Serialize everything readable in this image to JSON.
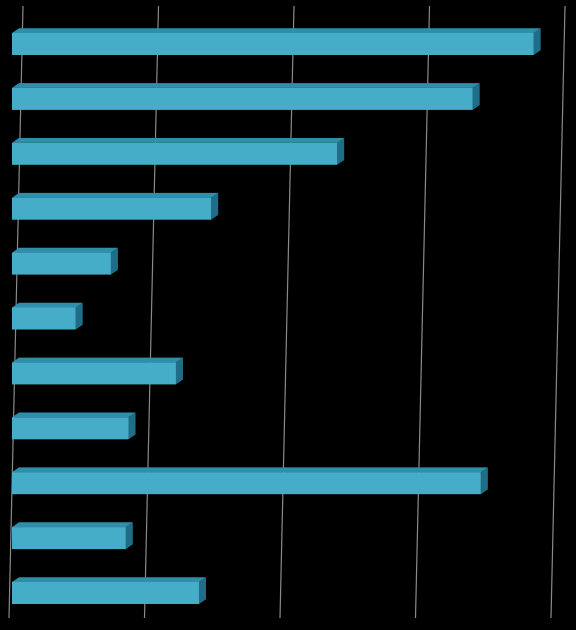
{
  "chart_data": {
    "type": "bar",
    "orientation": "horizontal",
    "style": "3d",
    "title": "",
    "xlabel": "",
    "ylabel": "",
    "grid": true,
    "legend": "none",
    "categories": [
      "",
      "",
      "",
      "",
      "",
      "",
      "",
      "",
      "",
      "",
      ""
    ],
    "series": [
      {
        "values": [
          3.85,
          3.4,
          2.4,
          1.47,
          0.73,
          0.47,
          1.21,
          0.86,
          3.46,
          0.84,
          1.38
        ]
      }
    ],
    "xlim": [
      0,
      4
    ],
    "colors": {
      "background": "#000000",
      "bar_front": "#46adc9",
      "bar_top": "#2f8fab",
      "bar_side": "#1f6e87",
      "grid": "#8a8a8a"
    }
  }
}
